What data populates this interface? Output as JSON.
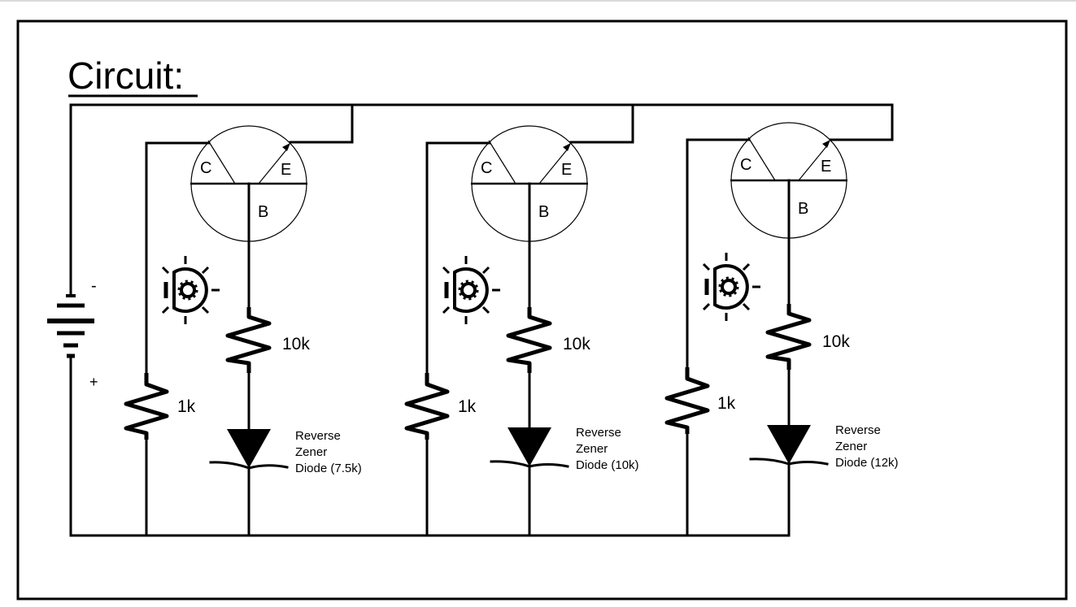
{
  "title": "Circuit:",
  "battery": {
    "negative_label": "-",
    "positive_label": "+"
  },
  "stages": [
    {
      "collector_label": "C",
      "emitter_label": "E",
      "base_label": "B",
      "base_resistor": "10k",
      "collector_resistor": "1k",
      "zener_label": [
        "Reverse",
        "Zener",
        "Diode (7.5k)"
      ]
    },
    {
      "collector_label": "C",
      "emitter_label": "E",
      "base_label": "B",
      "base_resistor": "10k",
      "collector_resistor": "1k",
      "zener_label": [
        "Reverse",
        "Zener",
        "Diode (10k)"
      ]
    },
    {
      "collector_label": "C",
      "emitter_label": "E",
      "base_label": "B",
      "base_resistor": "10k",
      "collector_resistor": "1k",
      "zener_label": [
        "Reverse",
        "Zener",
        "Diode (12k)"
      ]
    }
  ]
}
